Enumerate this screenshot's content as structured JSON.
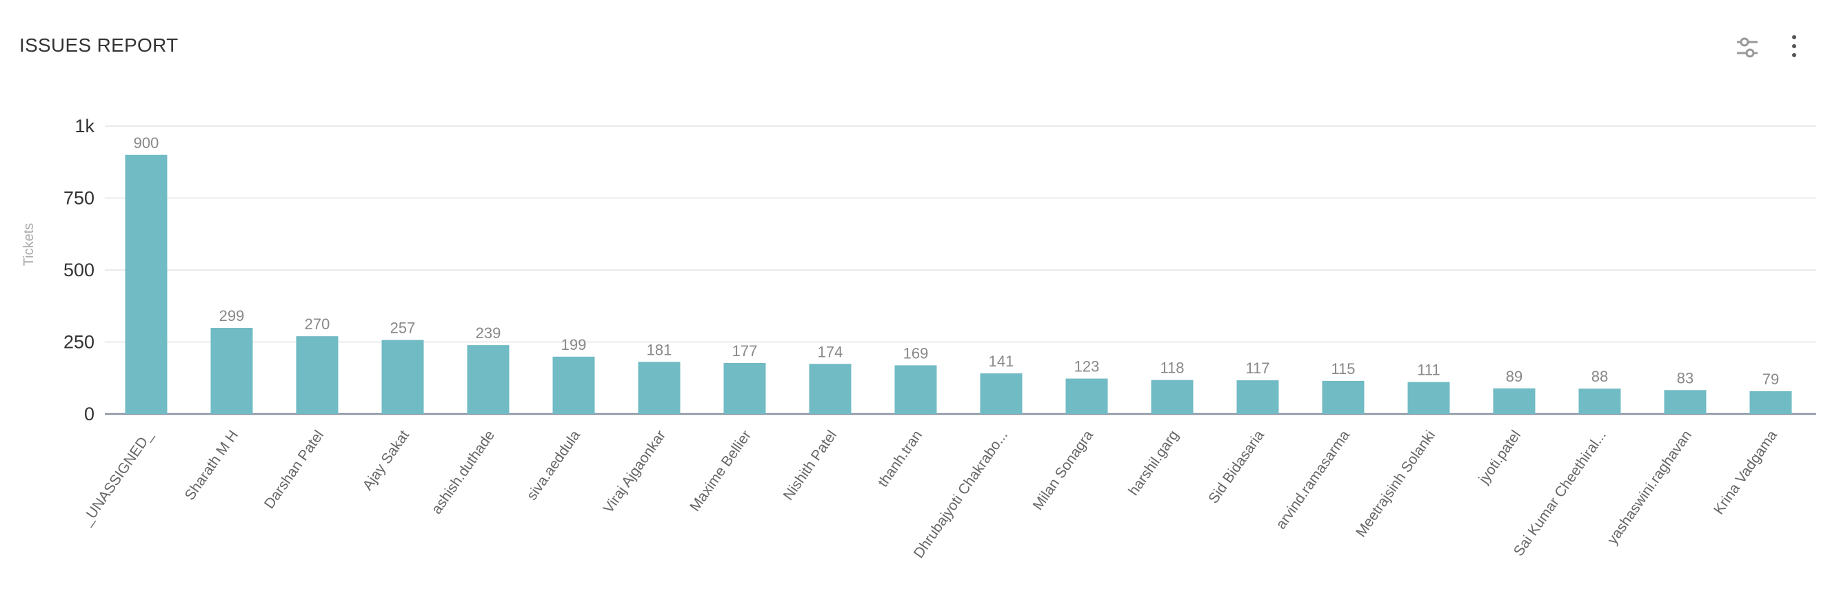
{
  "header": {
    "title": "ISSUES REPORT",
    "icons": [
      "sliders-icon",
      "more-vertical-icon"
    ]
  },
  "colors": {
    "bar": "#70bbc4",
    "axis": "#8a93a0",
    "grid": "#e3e3e3"
  },
  "chart_data": {
    "type": "bar",
    "title": "",
    "xlabel": "",
    "ylabel": "Tickets",
    "ylim": [
      0,
      1000
    ],
    "yticks": [
      0,
      250,
      500,
      750,
      1000
    ],
    "ytick_labels": [
      "0",
      "250",
      "500",
      "750",
      "1k"
    ],
    "grid": true,
    "categories": [
      "_UNASSIGNED_",
      "Sharath M H",
      "Darshan Patel",
      "Ajay Sakat",
      "ashish.duthade",
      "siva.aeddula",
      "Viraj Ajgaonkar",
      "Maxime Bellier",
      "Nishith Patel",
      "thanh.tran",
      "Dhrubajyoti Chakrabo...",
      "Milan Sonagra",
      "harshil.garg",
      "Sid Bidasaria",
      "arvind.ramasarma",
      "Meetrajsinh Solanki",
      "jyoti.patel",
      "Sai Kumar Cheethiral...",
      "yashaswini.raghavan",
      "Krina Vadgama"
    ],
    "values": [
      900,
      299,
      270,
      257,
      239,
      199,
      181,
      177,
      174,
      169,
      141,
      123,
      118,
      117,
      115,
      111,
      89,
      88,
      83,
      79
    ]
  }
}
